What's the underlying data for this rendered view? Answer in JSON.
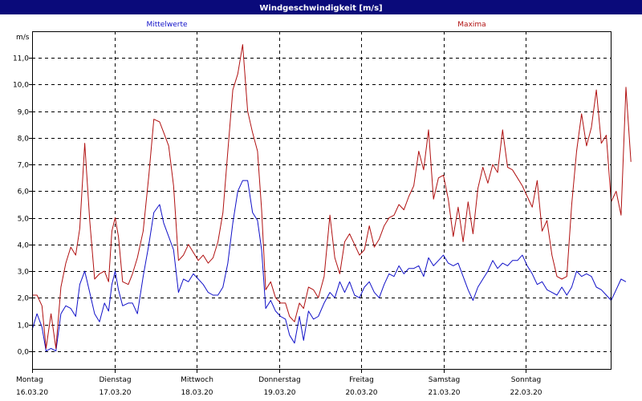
{
  "window": {
    "title": "Windgeschwindigkeit [m/s]"
  },
  "colors": {
    "titlebar": "#0a0a7a",
    "plot_bg": "#ffffff",
    "frame_bg": "#ffffff",
    "grid": "#000000",
    "mean": "#1010c8",
    "max": "#b01010"
  },
  "chart_data": {
    "type": "line",
    "title": "Windgeschwindigkeit [m/s]",
    "ylabel": "m/s",
    "ylim": [
      -0.7,
      12.0
    ],
    "yticks": [
      0,
      1,
      2,
      3,
      4,
      5,
      6,
      7,
      8,
      9,
      10,
      11
    ],
    "ytick_labels": [
      "0,0",
      "1,0",
      "2,0",
      "3,0",
      "4,0",
      "5,0",
      "6,0",
      "7,0",
      "8,0",
      "9,0",
      "10,0",
      "11,0"
    ],
    "xlim": [
      0,
      7.3
    ],
    "xticks": [
      0,
      1,
      2,
      3,
      4,
      5,
      6
    ],
    "xtick_day": [
      "Montag",
      "Dienstag",
      "Mittwoch",
      "Donnerstag",
      "Freitag",
      "Samstag",
      "Sonntag"
    ],
    "xtick_date": [
      "16.03.20",
      "17.03.20",
      "18.03.20",
      "19.03.20",
      "20.03.20",
      "21.03.20",
      "22.03.20"
    ],
    "grid": true,
    "legend": [
      "Mittelwerte",
      "Maxima"
    ],
    "series": [
      {
        "name": "Mittelwerte",
        "color": "#1010c8",
        "points": [
          [
            0.0,
            0.8
          ],
          [
            0.06,
            1.4
          ],
          [
            0.12,
            0.9
          ],
          [
            0.17,
            0.0
          ],
          [
            0.23,
            0.1
          ],
          [
            0.29,
            0.0
          ],
          [
            0.35,
            1.4
          ],
          [
            0.41,
            1.7
          ],
          [
            0.47,
            1.6
          ],
          [
            0.53,
            1.3
          ],
          [
            0.58,
            2.5
          ],
          [
            0.64,
            3.0
          ],
          [
            0.7,
            2.2
          ],
          [
            0.76,
            1.4
          ],
          [
            0.82,
            1.1
          ],
          [
            0.88,
            1.8
          ],
          [
            0.93,
            1.5
          ],
          [
            0.97,
            2.5
          ],
          [
            1.01,
            3.0
          ],
          [
            1.05,
            2.3
          ],
          [
            1.1,
            1.7
          ],
          [
            1.17,
            1.8
          ],
          [
            1.22,
            1.8
          ],
          [
            1.28,
            1.4
          ],
          [
            1.35,
            2.8
          ],
          [
            1.42,
            4.0
          ],
          [
            1.48,
            5.2
          ],
          [
            1.55,
            5.5
          ],
          [
            1.6,
            4.8
          ],
          [
            1.66,
            4.3
          ],
          [
            1.72,
            3.8
          ],
          [
            1.78,
            2.2
          ],
          [
            1.84,
            2.7
          ],
          [
            1.9,
            2.6
          ],
          [
            1.96,
            2.9
          ],
          [
            2.02,
            2.7
          ],
          [
            2.08,
            2.5
          ],
          [
            2.14,
            2.2
          ],
          [
            2.2,
            2.1
          ],
          [
            2.26,
            2.1
          ],
          [
            2.32,
            2.4
          ],
          [
            2.38,
            3.3
          ],
          [
            2.44,
            4.8
          ],
          [
            2.5,
            6.0
          ],
          [
            2.56,
            6.4
          ],
          [
            2.62,
            6.4
          ],
          [
            2.68,
            5.2
          ],
          [
            2.74,
            4.9
          ],
          [
            2.79,
            3.8
          ],
          [
            2.84,
            1.6
          ],
          [
            2.9,
            1.9
          ],
          [
            2.96,
            1.5
          ],
          [
            3.02,
            1.3
          ],
          [
            3.08,
            1.2
          ],
          [
            3.13,
            0.6
          ],
          [
            3.19,
            0.3
          ],
          [
            3.25,
            1.3
          ],
          [
            3.3,
            0.4
          ],
          [
            3.36,
            1.5
          ],
          [
            3.42,
            1.2
          ],
          [
            3.48,
            1.3
          ],
          [
            3.55,
            1.8
          ],
          [
            3.62,
            2.2
          ],
          [
            3.68,
            2.0
          ],
          [
            3.74,
            2.6
          ],
          [
            3.8,
            2.2
          ],
          [
            3.86,
            2.6
          ],
          [
            3.92,
            2.1
          ],
          [
            3.98,
            2.0
          ],
          [
            4.04,
            2.4
          ],
          [
            4.1,
            2.6
          ],
          [
            4.16,
            2.2
          ],
          [
            4.22,
            2.0
          ],
          [
            4.28,
            2.5
          ],
          [
            4.34,
            2.9
          ],
          [
            4.4,
            2.8
          ],
          [
            4.46,
            3.2
          ],
          [
            4.52,
            2.9
          ],
          [
            4.58,
            3.1
          ],
          [
            4.64,
            3.1
          ],
          [
            4.7,
            3.2
          ],
          [
            4.76,
            2.8
          ],
          [
            4.82,
            3.5
          ],
          [
            4.88,
            3.2
          ],
          [
            4.94,
            3.4
          ],
          [
            5.0,
            3.6
          ],
          [
            5.06,
            3.3
          ],
          [
            5.12,
            3.2
          ],
          [
            5.18,
            3.3
          ],
          [
            5.24,
            2.8
          ],
          [
            5.3,
            2.3
          ],
          [
            5.36,
            1.9
          ],
          [
            5.42,
            2.4
          ],
          [
            5.48,
            2.7
          ],
          [
            5.54,
            3.0
          ],
          [
            5.6,
            3.4
          ],
          [
            5.66,
            3.1
          ],
          [
            5.72,
            3.3
          ],
          [
            5.78,
            3.2
          ],
          [
            5.84,
            3.4
          ],
          [
            5.9,
            3.4
          ],
          [
            5.96,
            3.6
          ],
          [
            6.02,
            3.2
          ],
          [
            6.08,
            2.9
          ],
          [
            6.14,
            2.5
          ],
          [
            6.2,
            2.6
          ],
          [
            6.26,
            2.3
          ],
          [
            6.32,
            2.2
          ],
          [
            6.38,
            2.1
          ],
          [
            6.44,
            2.4
          ],
          [
            6.5,
            2.1
          ],
          [
            6.56,
            2.4
          ],
          [
            6.62,
            3.0
          ],
          [
            6.68,
            2.8
          ],
          [
            6.74,
            2.9
          ],
          [
            6.8,
            2.8
          ],
          [
            6.86,
            2.4
          ],
          [
            6.92,
            2.3
          ],
          [
            6.98,
            2.1
          ],
          [
            7.04,
            1.9
          ],
          [
            7.1,
            2.3
          ],
          [
            7.16,
            2.7
          ],
          [
            7.22,
            2.6
          ]
        ]
      },
      {
        "name": "Maxima",
        "color": "#b01010",
        "points": [
          [
            0.0,
            2.1
          ],
          [
            0.06,
            2.1
          ],
          [
            0.12,
            1.7
          ],
          [
            0.17,
            0.1
          ],
          [
            0.23,
            1.4
          ],
          [
            0.29,
            0.1
          ],
          [
            0.35,
            2.4
          ],
          [
            0.41,
            3.3
          ],
          [
            0.47,
            3.9
          ],
          [
            0.53,
            3.6
          ],
          [
            0.58,
            4.6
          ],
          [
            0.64,
            7.8
          ],
          [
            0.7,
            4.9
          ],
          [
            0.76,
            2.7
          ],
          [
            0.82,
            2.9
          ],
          [
            0.88,
            3.0
          ],
          [
            0.93,
            2.6
          ],
          [
            0.97,
            4.5
          ],
          [
            1.01,
            5.0
          ],
          [
            1.05,
            4.3
          ],
          [
            1.1,
            2.6
          ],
          [
            1.17,
            2.5
          ],
          [
            1.22,
            2.9
          ],
          [
            1.28,
            3.5
          ],
          [
            1.35,
            4.5
          ],
          [
            1.42,
            6.6
          ],
          [
            1.48,
            8.7
          ],
          [
            1.55,
            8.6
          ],
          [
            1.6,
            8.2
          ],
          [
            1.66,
            7.7
          ],
          [
            1.72,
            6.2
          ],
          [
            1.78,
            3.4
          ],
          [
            1.84,
            3.6
          ],
          [
            1.9,
            4.0
          ],
          [
            1.96,
            3.7
          ],
          [
            2.02,
            3.4
          ],
          [
            2.08,
            3.6
          ],
          [
            2.14,
            3.3
          ],
          [
            2.2,
            3.5
          ],
          [
            2.26,
            4.1
          ],
          [
            2.32,
            5.2
          ],
          [
            2.38,
            7.5
          ],
          [
            2.44,
            9.8
          ],
          [
            2.5,
            10.4
          ],
          [
            2.56,
            11.5
          ],
          [
            2.62,
            9.0
          ],
          [
            2.68,
            8.2
          ],
          [
            2.74,
            7.5
          ],
          [
            2.79,
            5.3
          ],
          [
            2.84,
            2.3
          ],
          [
            2.9,
            2.6
          ],
          [
            2.96,
            2.0
          ],
          [
            3.02,
            1.8
          ],
          [
            3.08,
            1.8
          ],
          [
            3.13,
            1.3
          ],
          [
            3.19,
            1.1
          ],
          [
            3.25,
            1.8
          ],
          [
            3.3,
            1.6
          ],
          [
            3.36,
            2.4
          ],
          [
            3.42,
            2.3
          ],
          [
            3.48,
            2.0
          ],
          [
            3.55,
            2.8
          ],
          [
            3.62,
            5.1
          ],
          [
            3.68,
            3.5
          ],
          [
            3.74,
            2.9
          ],
          [
            3.8,
            4.1
          ],
          [
            3.86,
            4.4
          ],
          [
            3.92,
            4.0
          ],
          [
            3.98,
            3.6
          ],
          [
            4.04,
            3.8
          ],
          [
            4.1,
            4.7
          ],
          [
            4.16,
            3.9
          ],
          [
            4.22,
            4.2
          ],
          [
            4.28,
            4.7
          ],
          [
            4.34,
            5.0
          ],
          [
            4.4,
            5.1
          ],
          [
            4.46,
            5.5
          ],
          [
            4.52,
            5.3
          ],
          [
            4.58,
            5.8
          ],
          [
            4.64,
            6.2
          ],
          [
            4.7,
            7.5
          ],
          [
            4.76,
            6.8
          ],
          [
            4.82,
            8.3
          ],
          [
            4.88,
            5.7
          ],
          [
            4.94,
            6.5
          ],
          [
            5.0,
            6.6
          ],
          [
            5.06,
            5.7
          ],
          [
            5.12,
            4.3
          ],
          [
            5.18,
            5.4
          ],
          [
            5.24,
            4.1
          ],
          [
            5.3,
            5.6
          ],
          [
            5.36,
            4.4
          ],
          [
            5.42,
            6.1
          ],
          [
            5.48,
            6.9
          ],
          [
            5.54,
            6.3
          ],
          [
            5.6,
            7.0
          ],
          [
            5.66,
            6.7
          ],
          [
            5.72,
            8.3
          ],
          [
            5.78,
            6.9
          ],
          [
            5.84,
            6.8
          ],
          [
            5.9,
            6.5
          ],
          [
            5.96,
            6.2
          ],
          [
            6.02,
            5.8
          ],
          [
            6.08,
            5.4
          ],
          [
            6.14,
            6.4
          ],
          [
            6.2,
            4.5
          ],
          [
            6.26,
            4.9
          ],
          [
            6.32,
            3.6
          ],
          [
            6.38,
            2.8
          ],
          [
            6.44,
            2.7
          ],
          [
            6.5,
            2.8
          ],
          [
            6.56,
            5.5
          ],
          [
            6.62,
            7.5
          ],
          [
            6.68,
            8.9
          ],
          [
            6.74,
            7.7
          ],
          [
            6.8,
            8.4
          ],
          [
            6.86,
            9.8
          ],
          [
            6.92,
            7.8
          ],
          [
            6.98,
            8.1
          ],
          [
            7.04,
            5.6
          ],
          [
            7.1,
            6.0
          ],
          [
            7.16,
            5.1
          ],
          [
            7.22,
            9.9
          ],
          [
            7.28,
            7.1
          ]
        ]
      }
    ]
  }
}
